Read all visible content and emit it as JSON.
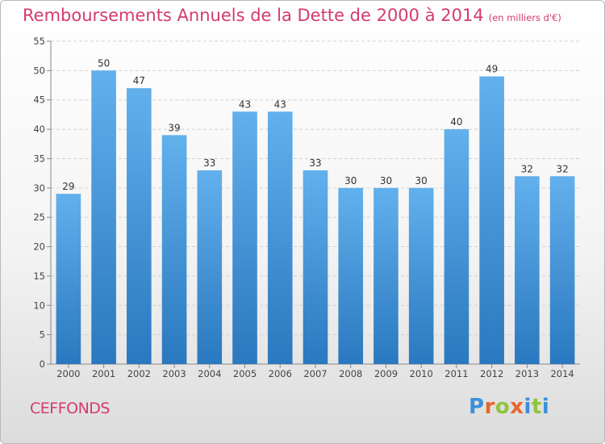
{
  "chart_data": {
    "type": "bar",
    "title": "Remboursements Annuels de la Dette de 2000 à 2014",
    "unit_note": "(en milliers d'€)",
    "categories": [
      "2000",
      "2001",
      "2002",
      "2003",
      "2004",
      "2005",
      "2006",
      "2007",
      "2008",
      "2009",
      "2010",
      "2011",
      "2012",
      "2013",
      "2014"
    ],
    "values": [
      29,
      50,
      47,
      39,
      33,
      43,
      43,
      33,
      30,
      30,
      30,
      40,
      49,
      32,
      32
    ],
    "ylim": [
      0,
      55
    ],
    "yticks": [
      0,
      5,
      10,
      15,
      20,
      25,
      30,
      35,
      40,
      45,
      50,
      55
    ],
    "grid": true,
    "bar_color": "#3d8fd6"
  },
  "footer": {
    "commune": "CEFFONDS",
    "logo_letters": [
      "P",
      "r",
      "o",
      "x",
      "i",
      "t",
      "i"
    ],
    "logo_colors": [
      "#3b8fd9",
      "#e8662b",
      "#8fc43a",
      "#e8662b",
      "#3b8fd9",
      "#8fc43a",
      "#3b8fd9"
    ]
  }
}
